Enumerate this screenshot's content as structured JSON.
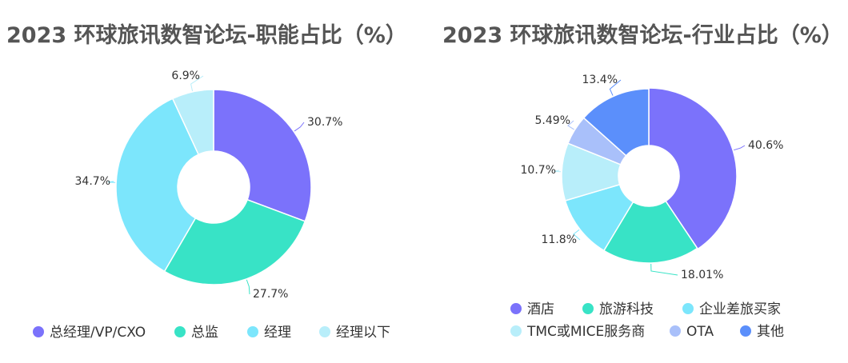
{
  "chart_data": [
    {
      "type": "pie",
      "title": "2023 环球旅讯数智论坛-职能占比（%）",
      "categories": [
        "总经理/VP/CXO",
        "总监",
        "经理",
        "经理以下"
      ],
      "values": [
        30.7,
        27.7,
        34.7,
        6.9
      ],
      "value_labels": [
        "30.7%",
        "27.7%",
        "34.7%",
        "6.9%"
      ],
      "colors": [
        "#7b72fb",
        "#38e3c6",
        "#7ce6fc",
        "#b8eefa"
      ],
      "legend": "bottom"
    },
    {
      "type": "pie",
      "title": "2023 环球旅讯数智论坛-行业占比（%）",
      "categories": [
        "酒店",
        "旅游科技",
        "企业差旅买家",
        "TMC或MICE服务商",
        "OTA",
        "其他"
      ],
      "values": [
        40.6,
        18.01,
        11.8,
        10.7,
        5.49,
        13.4
      ],
      "value_labels": [
        "40.6%",
        "18.01%",
        "11.8%",
        "10.7%",
        "5.49%",
        "13.4%"
      ],
      "colors": [
        "#7b72fb",
        "#38e3c6",
        "#7ce6fc",
        "#b8eefa",
        "#a9c0fa",
        "#5b8ffb"
      ],
      "legend": "bottom"
    }
  ]
}
